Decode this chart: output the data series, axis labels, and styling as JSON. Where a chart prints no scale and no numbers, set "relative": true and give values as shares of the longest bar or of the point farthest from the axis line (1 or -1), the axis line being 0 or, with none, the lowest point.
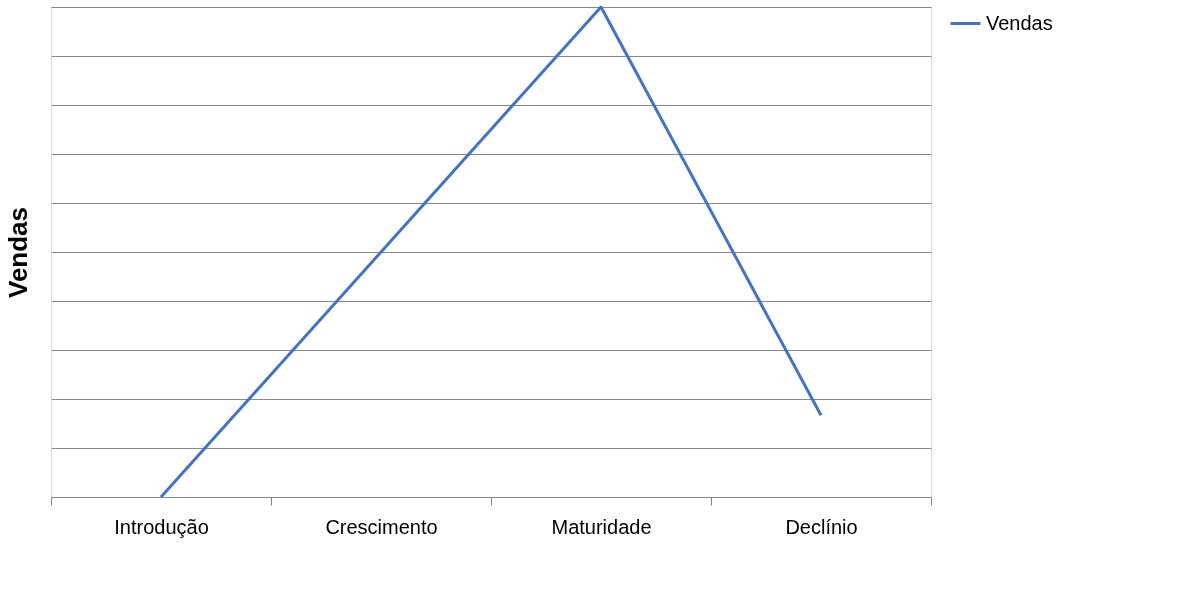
{
  "chart_data": {
    "type": "line",
    "ylabel": "Vendas",
    "relative": true,
    "grid": "y",
    "legend": "right",
    "categories": [
      "Introdução",
      "Crescimento",
      "Maturidade",
      "Declínio"
    ],
    "series": [
      {
        "name": "Vendas",
        "color": "#4472c4",
        "values": [
          0,
          0.5,
          1,
          0.1667
        ]
      }
    ]
  }
}
